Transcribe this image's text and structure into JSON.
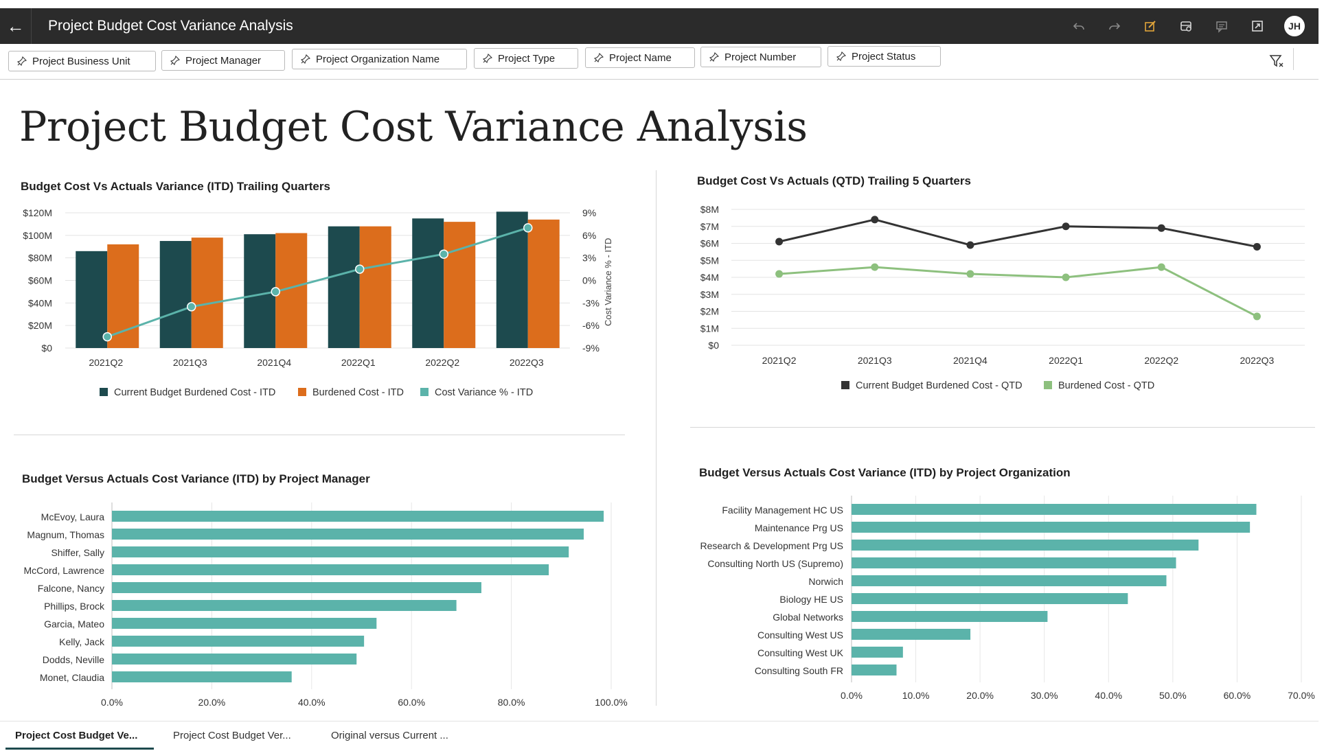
{
  "header": {
    "title": "Project Budget Cost Variance Analysis",
    "avatar": "JH"
  },
  "filters": [
    "Project Business Unit",
    "Project Manager",
    "Project Organization Name",
    "Project Type",
    "Project Name",
    "Project Number",
    "Project Status"
  ],
  "page_title": "Project Budget Cost Variance Analysis",
  "tabs": [
    "Project Cost Budget Ve...",
    "Project Cost Budget Ver...",
    "Original versus Current ..."
  ],
  "colors": {
    "dark_teal": "#1d4a4e",
    "orange": "#dc6d1c",
    "teal_line": "#5bb3aa",
    "bar_teal": "#5bb3aa",
    "dark_line": "#333333",
    "green_line": "#8dc07e"
  },
  "chart_data": [
    {
      "type": "bar",
      "title": "Budget Cost Vs Actuals Variance (ITD) Trailing Quarters",
      "categories": [
        "2021Q2",
        "2021Q3",
        "2021Q4",
        "2022Q1",
        "2022Q2",
        "2022Q3"
      ],
      "y_ticks": [
        "$120M",
        "$100M",
        "$80M",
        "$60M",
        "$40M",
        "$20M",
        "$0"
      ],
      "y2_ticks": [
        "9%",
        "6%",
        "3%",
        "0%",
        "-3%",
        "-6%",
        "-9%"
      ],
      "y2label": "Cost Variance % - ITD",
      "ylim": [
        0,
        120
      ],
      "y2lim": [
        -9,
        9
      ],
      "series": [
        {
          "name": "Current Budget Burdened Cost - ITD",
          "values": [
            86,
            95,
            101,
            108,
            115,
            121
          ]
        },
        {
          "name": "Burdened Cost - ITD",
          "values": [
            92,
            98,
            102,
            108,
            112,
            114
          ]
        },
        {
          "name": "Cost Variance % - ITD",
          "axis": "y2",
          "values": [
            -7.5,
            -3.5,
            -1.5,
            1.5,
            3.5,
            7
          ]
        }
      ],
      "legend": "bottom"
    },
    {
      "type": "line",
      "title": "Budget Cost Vs Actuals (QTD) Trailing 5 Quarters",
      "categories": [
        "2021Q2",
        "2021Q3",
        "2021Q4",
        "2022Q1",
        "2022Q2",
        "2022Q3"
      ],
      "y_ticks": [
        "$8M",
        "$7M",
        "$6M",
        "$5M",
        "$4M",
        "$3M",
        "$2M",
        "$1M",
        "$0"
      ],
      "ylim": [
        0,
        8
      ],
      "series": [
        {
          "name": "Current Budget Burdened Cost - QTD",
          "values": [
            6.1,
            7.4,
            5.9,
            7.0,
            6.9,
            5.8
          ]
        },
        {
          "name": "Burdened Cost - QTD",
          "values": [
            4.2,
            4.6,
            4.2,
            4.0,
            4.6,
            1.7
          ]
        }
      ],
      "legend": "bottom"
    },
    {
      "type": "bar",
      "orientation": "horizontal",
      "title": "Budget Versus Actuals Cost Variance (ITD) by Project Manager",
      "categories": [
        "McEvoy, Laura",
        "Magnum, Thomas",
        "Shiffer, Sally",
        "McCord, Lawrence",
        "Falcone, Nancy",
        "Phillips, Brock",
        "Garcia, Mateo",
        "Kelly, Jack",
        "Dodds, Neville",
        "Monet, Claudia"
      ],
      "values": [
        98.5,
        94.5,
        91.5,
        87.5,
        74.0,
        69.0,
        53.0,
        50.5,
        49.0,
        36.0
      ],
      "x_ticks": [
        "0.0%",
        "20.0%",
        "40.0%",
        "60.0%",
        "80.0%",
        "100.0%"
      ],
      "xlim": [
        0,
        100
      ]
    },
    {
      "type": "bar",
      "orientation": "horizontal",
      "title": "Budget Versus Actuals Cost Variance (ITD) by Project Organization",
      "categories": [
        "Facility Management HC US",
        "Maintenance Prg US",
        "Research & Development Prg US",
        "Consulting North US (Supremo)",
        "Norwich",
        "Biology HE US",
        "Global Networks",
        "Consulting West US",
        "Consulting West UK",
        "Consulting South FR"
      ],
      "values": [
        63.0,
        62.0,
        54.0,
        50.5,
        49.0,
        43.0,
        30.5,
        18.5,
        8.0,
        7.0
      ],
      "x_ticks": [
        "0.0%",
        "10.0%",
        "20.0%",
        "30.0%",
        "40.0%",
        "50.0%",
        "60.0%",
        "70.0%"
      ],
      "xlim": [
        0,
        70
      ]
    }
  ]
}
